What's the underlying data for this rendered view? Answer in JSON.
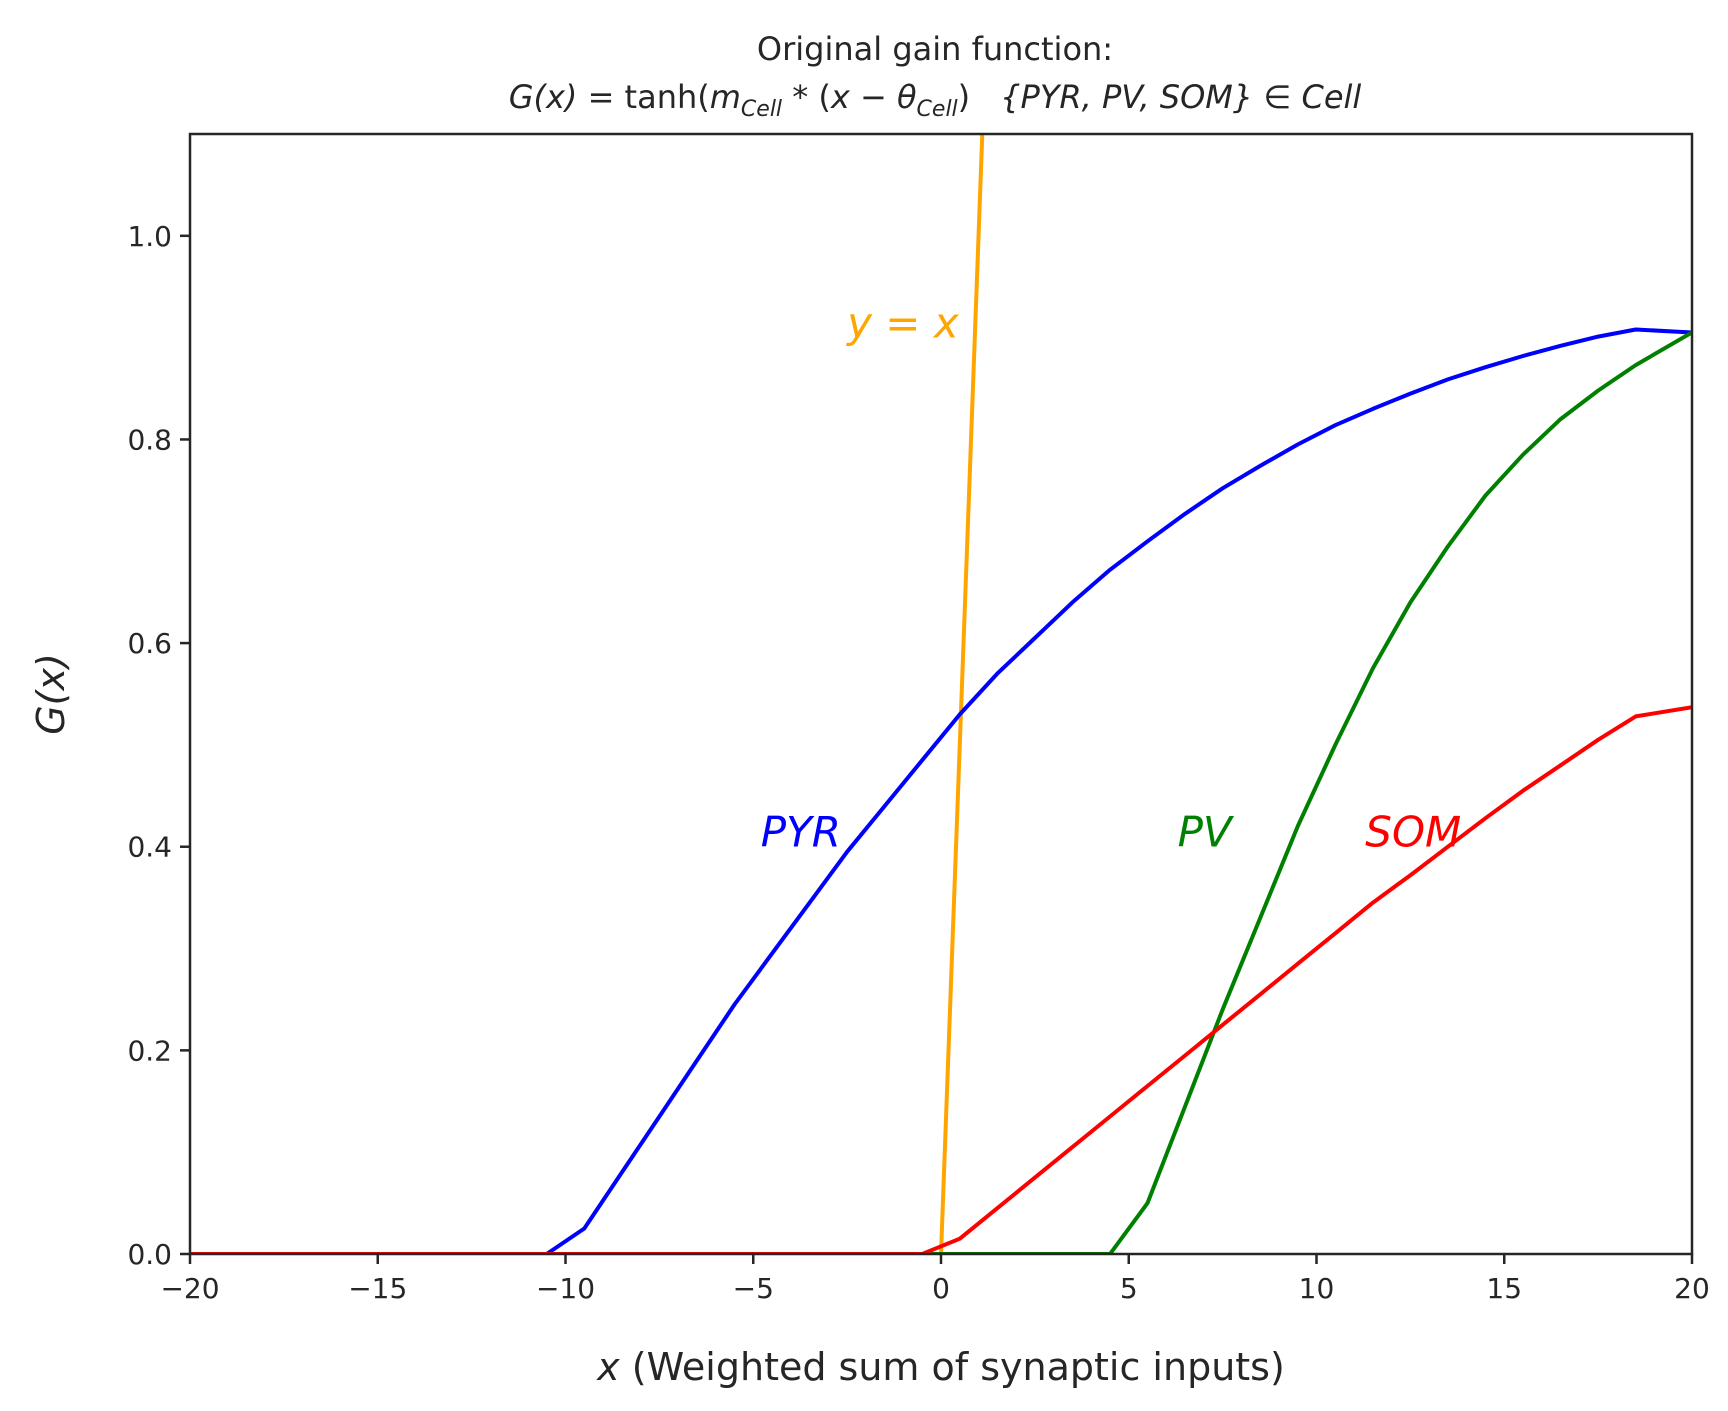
{
  "chart_data": {
    "type": "line",
    "title": "Original gain function:",
    "subtitle": "G(x) = tanh(m_Cell * (x − θ_Cell))   {PYR, PV, SOM} ∈ Cell",
    "subtitle_parts": {
      "g_of_x": "G(x)",
      "eq": " = tanh(",
      "m": "m",
      "cell_sub_1": "Cell",
      "star": " * (",
      "x": "x",
      "minus": " − ",
      "theta": "θ",
      "cell_sub_2": "Cell",
      "close": ")",
      "set": "{PYR, PV, SOM}",
      "in_cell": " ∈ Cell"
    },
    "xlabel": {
      "var": "x",
      "text": " (Weighted sum of synaptic inputs)"
    },
    "ylabel": "G(x)",
    "xlim": [
      -20,
      20
    ],
    "ylim": [
      0,
      1.1
    ],
    "x_ticks": [
      {
        "value": -20,
        "label": "−20"
      },
      {
        "value": -15,
        "label": "−15"
      },
      {
        "value": -10,
        "label": "−10"
      },
      {
        "value": -5,
        "label": "−5"
      },
      {
        "value": 0,
        "label": "0"
      },
      {
        "value": 5,
        "label": "5"
      },
      {
        "value": 10,
        "label": "10"
      },
      {
        "value": 15,
        "label": "15"
      },
      {
        "value": 20,
        "label": "20"
      }
    ],
    "y_ticks": [
      {
        "value": 0.0,
        "label": "0.0"
      },
      {
        "value": 0.2,
        "label": "0.2"
      },
      {
        "value": 0.4,
        "label": "0.4"
      },
      {
        "value": 0.6,
        "label": "0.6"
      },
      {
        "value": 0.8,
        "label": "0.8"
      },
      {
        "value": 1.0,
        "label": "1.0"
      }
    ],
    "grid": false,
    "series": [
      {
        "name": "y = x",
        "color": "#FFA500",
        "points": [
          [
            0,
            0
          ],
          [
            1.1,
            1.1
          ]
        ]
      },
      {
        "name": "PYR",
        "color": "#0000FF",
        "points": [
          [
            -20,
            0
          ],
          [
            -10.5,
            0
          ],
          [
            -9.5,
            0.025
          ],
          [
            -8.5,
            0.08
          ],
          [
            -7.5,
            0.135
          ],
          [
            -6.5,
            0.19
          ],
          [
            -5.5,
            0.245
          ],
          [
            -4.5,
            0.295
          ],
          [
            -3.5,
            0.345
          ],
          [
            -2.5,
            0.395
          ],
          [
            -1.5,
            0.44
          ],
          [
            -0.5,
            0.485
          ],
          [
            0.5,
            0.53
          ],
          [
            1.5,
            0.57
          ],
          [
            2.5,
            0.605
          ],
          [
            3.5,
            0.64
          ],
          [
            4.5,
            0.672
          ],
          [
            5.5,
            0.7
          ],
          [
            6.5,
            0.727
          ],
          [
            7.5,
            0.752
          ],
          [
            8.5,
            0.774
          ],
          [
            9.5,
            0.795
          ],
          [
            10.5,
            0.814
          ],
          [
            11.5,
            0.83
          ],
          [
            12.5,
            0.845
          ],
          [
            13.5,
            0.859
          ],
          [
            14.5,
            0.871
          ],
          [
            15.5,
            0.882
          ],
          [
            16.5,
            0.892
          ],
          [
            17.5,
            0.901
          ],
          [
            18.5,
            0.908
          ],
          [
            20,
            0.905
          ]
        ]
      },
      {
        "name": "PV",
        "color": "#008000",
        "points": [
          [
            -20,
            0
          ],
          [
            4.5,
            0
          ],
          [
            5.5,
            0.05
          ],
          [
            6.5,
            0.145
          ],
          [
            7.5,
            0.24
          ],
          [
            8.5,
            0.33
          ],
          [
            9.5,
            0.42
          ],
          [
            10.5,
            0.5
          ],
          [
            11.5,
            0.575
          ],
          [
            12.5,
            0.64
          ],
          [
            13.5,
            0.695
          ],
          [
            14.5,
            0.745
          ],
          [
            15.5,
            0.785
          ],
          [
            16.5,
            0.82
          ],
          [
            17.5,
            0.848
          ],
          [
            18.5,
            0.873
          ],
          [
            20,
            0.905
          ]
        ]
      },
      {
        "name": "SOM",
        "color": "#FF0000",
        "points": [
          [
            -20,
            0
          ],
          [
            -0.5,
            0
          ],
          [
            0.5,
            0.015
          ],
          [
            1.5,
            0.045
          ],
          [
            2.5,
            0.075
          ],
          [
            3.5,
            0.105
          ],
          [
            4.5,
            0.135
          ],
          [
            5.5,
            0.165
          ],
          [
            6.5,
            0.195
          ],
          [
            7.5,
            0.225
          ],
          [
            8.5,
            0.255
          ],
          [
            9.5,
            0.285
          ],
          [
            10.5,
            0.315
          ],
          [
            11.5,
            0.345
          ],
          [
            12.5,
            0.372
          ],
          [
            13.5,
            0.4
          ],
          [
            14.5,
            0.428
          ],
          [
            15.5,
            0.455
          ],
          [
            16.5,
            0.48
          ],
          [
            17.5,
            0.505
          ],
          [
            18.5,
            0.528
          ],
          [
            20,
            0.537
          ]
        ]
      }
    ],
    "annotations": [
      {
        "text": "y = x",
        "x": -2.5,
        "y": 0.9,
        "color": "#FFA500"
      },
      {
        "text": "PYR",
        "x": -4.8,
        "y": 0.4,
        "color": "#0000FF"
      },
      {
        "text": "PV",
        "x": 6.3,
        "y": 0.4,
        "color": "#008000"
      },
      {
        "text": "SOM",
        "x": 11.3,
        "y": 0.4,
        "color": "#FF0000"
      }
    ]
  }
}
